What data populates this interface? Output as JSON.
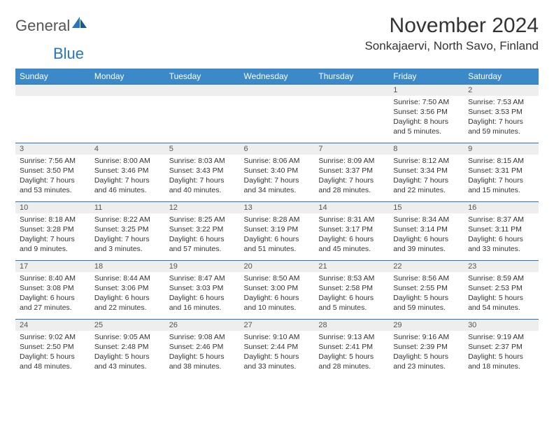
{
  "brand": {
    "part1": "General",
    "part2": "Blue"
  },
  "title": "November 2024",
  "location": "Sonkajaervi, North Savo, Finland",
  "colors": {
    "header_bg": "#3b89c9",
    "header_text": "#ffffff",
    "daynum_bg": "#eeeeee",
    "border": "#2776bb",
    "brand_blue": "#2776bb",
    "brand_gray": "#555555",
    "body_text": "#333333",
    "background": "#ffffff"
  },
  "typography": {
    "title_fontsize": 30,
    "location_fontsize": 17,
    "dayheader_fontsize": 12,
    "daynum_fontsize": 11,
    "detail_fontsize": 10.5
  },
  "day_headers": [
    "Sunday",
    "Monday",
    "Tuesday",
    "Wednesday",
    "Thursday",
    "Friday",
    "Saturday"
  ],
  "weeks": [
    [
      null,
      null,
      null,
      null,
      null,
      {
        "n": "1",
        "sr": "Sunrise: 7:50 AM",
        "ss": "Sunset: 3:56 PM",
        "dl": "Daylight: 8 hours and 5 minutes."
      },
      {
        "n": "2",
        "sr": "Sunrise: 7:53 AM",
        "ss": "Sunset: 3:53 PM",
        "dl": "Daylight: 7 hours and 59 minutes."
      }
    ],
    [
      {
        "n": "3",
        "sr": "Sunrise: 7:56 AM",
        "ss": "Sunset: 3:50 PM",
        "dl": "Daylight: 7 hours and 53 minutes."
      },
      {
        "n": "4",
        "sr": "Sunrise: 8:00 AM",
        "ss": "Sunset: 3:46 PM",
        "dl": "Daylight: 7 hours and 46 minutes."
      },
      {
        "n": "5",
        "sr": "Sunrise: 8:03 AM",
        "ss": "Sunset: 3:43 PM",
        "dl": "Daylight: 7 hours and 40 minutes."
      },
      {
        "n": "6",
        "sr": "Sunrise: 8:06 AM",
        "ss": "Sunset: 3:40 PM",
        "dl": "Daylight: 7 hours and 34 minutes."
      },
      {
        "n": "7",
        "sr": "Sunrise: 8:09 AM",
        "ss": "Sunset: 3:37 PM",
        "dl": "Daylight: 7 hours and 28 minutes."
      },
      {
        "n": "8",
        "sr": "Sunrise: 8:12 AM",
        "ss": "Sunset: 3:34 PM",
        "dl": "Daylight: 7 hours and 22 minutes."
      },
      {
        "n": "9",
        "sr": "Sunrise: 8:15 AM",
        "ss": "Sunset: 3:31 PM",
        "dl": "Daylight: 7 hours and 15 minutes."
      }
    ],
    [
      {
        "n": "10",
        "sr": "Sunrise: 8:18 AM",
        "ss": "Sunset: 3:28 PM",
        "dl": "Daylight: 7 hours and 9 minutes."
      },
      {
        "n": "11",
        "sr": "Sunrise: 8:22 AM",
        "ss": "Sunset: 3:25 PM",
        "dl": "Daylight: 7 hours and 3 minutes."
      },
      {
        "n": "12",
        "sr": "Sunrise: 8:25 AM",
        "ss": "Sunset: 3:22 PM",
        "dl": "Daylight: 6 hours and 57 minutes."
      },
      {
        "n": "13",
        "sr": "Sunrise: 8:28 AM",
        "ss": "Sunset: 3:19 PM",
        "dl": "Daylight: 6 hours and 51 minutes."
      },
      {
        "n": "14",
        "sr": "Sunrise: 8:31 AM",
        "ss": "Sunset: 3:17 PM",
        "dl": "Daylight: 6 hours and 45 minutes."
      },
      {
        "n": "15",
        "sr": "Sunrise: 8:34 AM",
        "ss": "Sunset: 3:14 PM",
        "dl": "Daylight: 6 hours and 39 minutes."
      },
      {
        "n": "16",
        "sr": "Sunrise: 8:37 AM",
        "ss": "Sunset: 3:11 PM",
        "dl": "Daylight: 6 hours and 33 minutes."
      }
    ],
    [
      {
        "n": "17",
        "sr": "Sunrise: 8:40 AM",
        "ss": "Sunset: 3:08 PM",
        "dl": "Daylight: 6 hours and 27 minutes."
      },
      {
        "n": "18",
        "sr": "Sunrise: 8:44 AM",
        "ss": "Sunset: 3:06 PM",
        "dl": "Daylight: 6 hours and 22 minutes."
      },
      {
        "n": "19",
        "sr": "Sunrise: 8:47 AM",
        "ss": "Sunset: 3:03 PM",
        "dl": "Daylight: 6 hours and 16 minutes."
      },
      {
        "n": "20",
        "sr": "Sunrise: 8:50 AM",
        "ss": "Sunset: 3:00 PM",
        "dl": "Daylight: 6 hours and 10 minutes."
      },
      {
        "n": "21",
        "sr": "Sunrise: 8:53 AM",
        "ss": "Sunset: 2:58 PM",
        "dl": "Daylight: 6 hours and 5 minutes."
      },
      {
        "n": "22",
        "sr": "Sunrise: 8:56 AM",
        "ss": "Sunset: 2:55 PM",
        "dl": "Daylight: 5 hours and 59 minutes."
      },
      {
        "n": "23",
        "sr": "Sunrise: 8:59 AM",
        "ss": "Sunset: 2:53 PM",
        "dl": "Daylight: 5 hours and 54 minutes."
      }
    ],
    [
      {
        "n": "24",
        "sr": "Sunrise: 9:02 AM",
        "ss": "Sunset: 2:50 PM",
        "dl": "Daylight: 5 hours and 48 minutes."
      },
      {
        "n": "25",
        "sr": "Sunrise: 9:05 AM",
        "ss": "Sunset: 2:48 PM",
        "dl": "Daylight: 5 hours and 43 minutes."
      },
      {
        "n": "26",
        "sr": "Sunrise: 9:08 AM",
        "ss": "Sunset: 2:46 PM",
        "dl": "Daylight: 5 hours and 38 minutes."
      },
      {
        "n": "27",
        "sr": "Sunrise: 9:10 AM",
        "ss": "Sunset: 2:44 PM",
        "dl": "Daylight: 5 hours and 33 minutes."
      },
      {
        "n": "28",
        "sr": "Sunrise: 9:13 AM",
        "ss": "Sunset: 2:41 PM",
        "dl": "Daylight: 5 hours and 28 minutes."
      },
      {
        "n": "29",
        "sr": "Sunrise: 9:16 AM",
        "ss": "Sunset: 2:39 PM",
        "dl": "Daylight: 5 hours and 23 minutes."
      },
      {
        "n": "30",
        "sr": "Sunrise: 9:19 AM",
        "ss": "Sunset: 2:37 PM",
        "dl": "Daylight: 5 hours and 18 minutes."
      }
    ]
  ]
}
